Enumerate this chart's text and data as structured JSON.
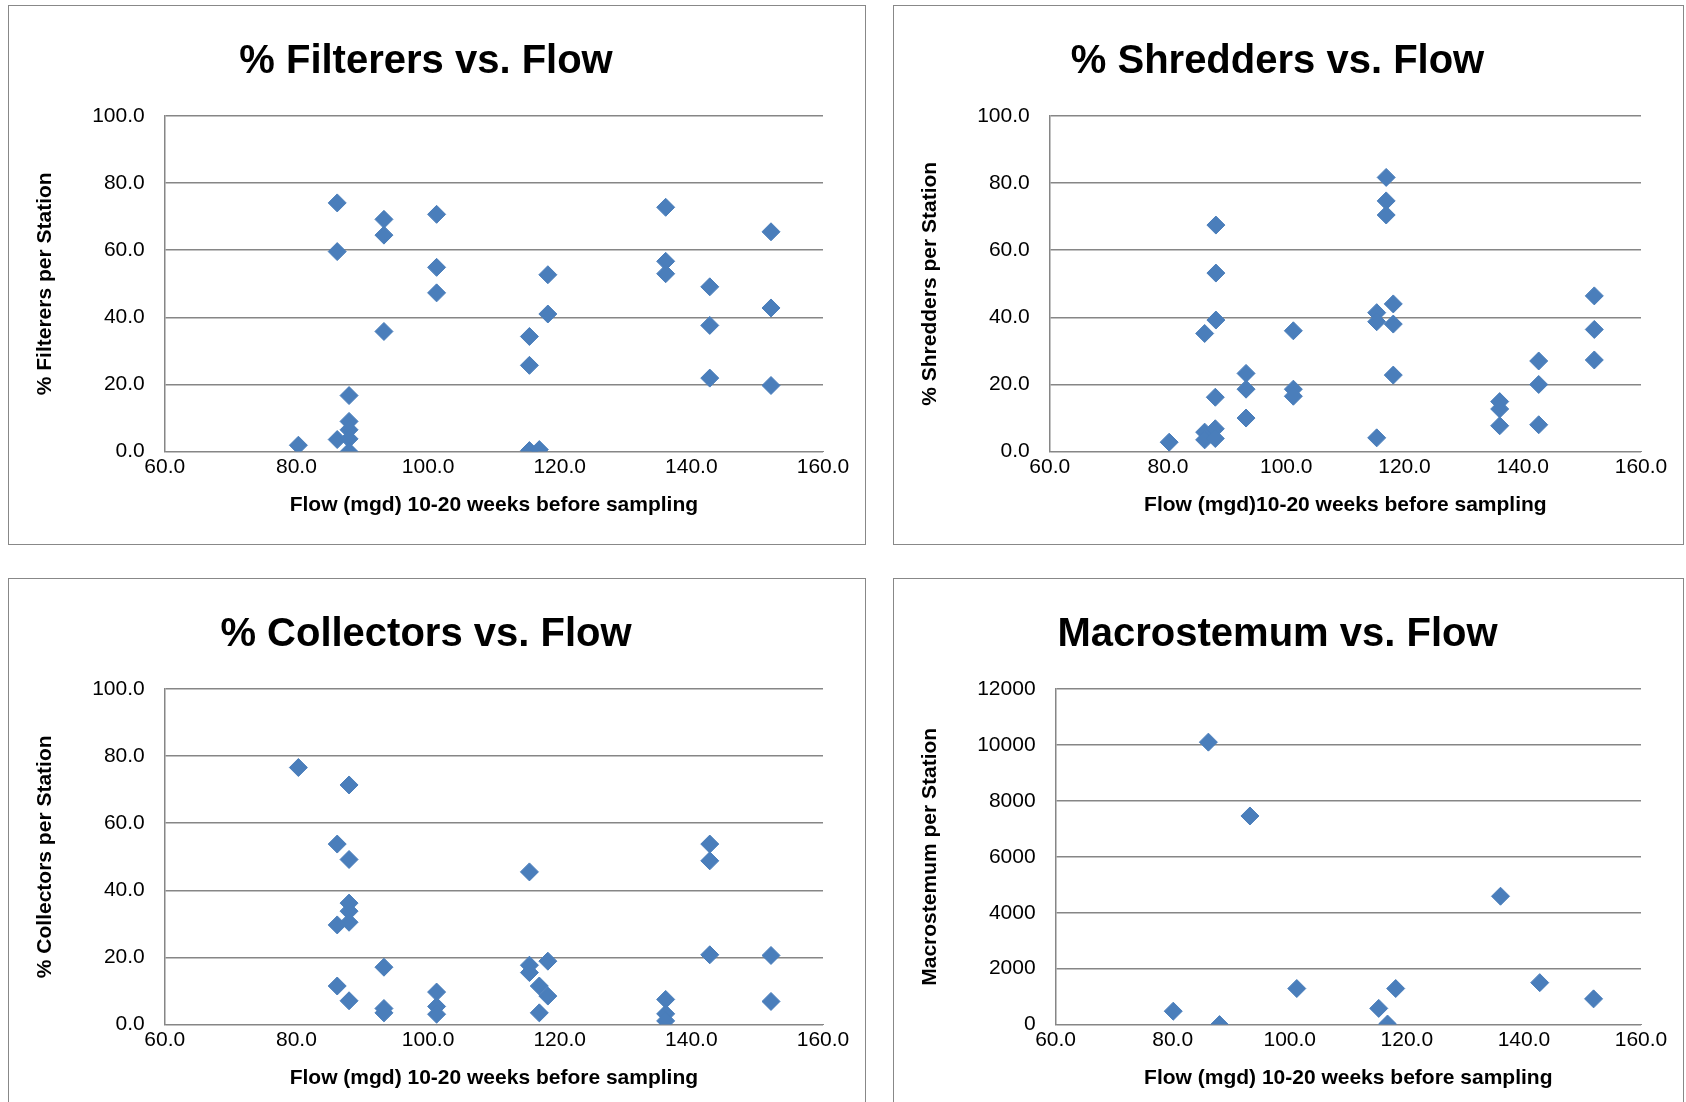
{
  "chart_data": [
    {
      "type": "scatter",
      "title": "% Filterers vs. Flow",
      "xlabel": "Flow (mgd) 10-20 weeks before sampling",
      "ylabel": "% Filterers per Station",
      "color": "#4a7ebb",
      "marker": "diamond",
      "grid": "y",
      "x": [
        80.3,
        86.2,
        86.2,
        86.2,
        88.0,
        88.0,
        88.0,
        88.0,
        88.0,
        93.3,
        93.3,
        93.3,
        101.3,
        101.3,
        101.3,
        115.4,
        115.4,
        115.4,
        116.9,
        118.2,
        118.2,
        136.1,
        136.1,
        136.1,
        142.8,
        142.8,
        142.8,
        152.1,
        152.1,
        152.1
      ],
      "values": [
        1.9,
        74.1,
        59.6,
        3.6,
        16.7,
        9.0,
        6.5,
        3.8,
        0.0,
        69.2,
        64.5,
        35.8,
        70.7,
        54.9,
        47.3,
        34.3,
        25.7,
        0.3,
        0.6,
        52.7,
        41.0,
        72.8,
        56.7,
        53.0,
        49.1,
        37.6,
        21.9,
        65.5,
        42.8,
        19.7
      ],
      "xlim": [
        60,
        160
      ],
      "xticks": [
        {
          "value": 60,
          "label": "60.0"
        },
        {
          "value": 80,
          "label": "80.0"
        },
        {
          "value": 100,
          "label": "100.0"
        },
        {
          "value": 120,
          "label": "120.0"
        },
        {
          "value": 140,
          "label": "140.0"
        },
        {
          "value": 160,
          "label": "160.0"
        }
      ],
      "ylim": [
        0,
        100
      ],
      "yticks": [
        {
          "value": 0,
          "label": "0.0"
        },
        {
          "value": 20,
          "label": "20.0"
        },
        {
          "value": 40,
          "label": "40.0"
        },
        {
          "value": 60,
          "label": "60.0"
        },
        {
          "value": 80,
          "label": "80.0"
        },
        {
          "value": 100,
          "label": "100.0"
        }
      ]
    },
    {
      "type": "scatter",
      "title": "% Shredders vs. Flow",
      "xlabel": "Flow (mgd)10-20 weeks before sampling",
      "ylabel": "% Shredders per Station",
      "color": "#4a7ebb",
      "marker": "diamond",
      "grid": "y",
      "x": [
        80.2,
        86.2,
        86.2,
        86.2,
        88.1,
        88.1,
        88.1,
        88.0,
        88.0,
        88.0,
        93.2,
        93.2,
        93.2,
        101.2,
        101.2,
        101.2,
        115.3,
        115.3,
        115.3,
        116.9,
        116.9,
        116.9,
        118.1,
        118.1,
        118.1,
        136.1,
        136.1,
        136.1,
        142.7,
        142.7,
        142.7,
        152.1,
        152.1,
        152.1
      ],
      "values": [
        2.8,
        35.2,
        5.8,
        3.5,
        67.5,
        53.2,
        39.2,
        16.2,
        6.8,
        3.9,
        23.3,
        18.6,
        10.0,
        36.0,
        18.6,
        16.5,
        41.4,
        38.7,
        4.1,
        81.7,
        74.7,
        70.5,
        44.0,
        38.0,
        22.8,
        14.9,
        12.7,
        7.7,
        27.0,
        20.0,
        8.0,
        46.4,
        36.4,
        27.3
      ],
      "xlim": [
        60,
        160
      ],
      "xticks": [
        {
          "value": 60,
          "label": "60.0"
        },
        {
          "value": 80,
          "label": "80.0"
        },
        {
          "value": 100,
          "label": "100.0"
        },
        {
          "value": 120,
          "label": "120.0"
        },
        {
          "value": 140,
          "label": "140.0"
        },
        {
          "value": 160,
          "label": "160.0"
        }
      ],
      "ylim": [
        0,
        100
      ],
      "yticks": [
        {
          "value": 0,
          "label": "0.0"
        },
        {
          "value": 20,
          "label": "20.0"
        },
        {
          "value": 40,
          "label": "40.0"
        },
        {
          "value": 60,
          "label": "60.0"
        },
        {
          "value": 80,
          "label": "80.0"
        },
        {
          "value": 100,
          "label": "100.0"
        }
      ]
    },
    {
      "type": "scatter",
      "title": "% Collectors vs. Flow",
      "xlabel": "Flow (mgd) 10-20 weeks before sampling",
      "ylabel": "% Collectors per Station",
      "color": "#4a7ebb",
      "marker": "diamond",
      "grid": "y",
      "x": [
        80.3,
        88.0,
        86.2,
        88.0,
        88.0,
        88.0,
        88.0,
        86.2,
        93.3,
        86.2,
        88.0,
        93.3,
        93.3,
        101.3,
        101.3,
        101.3,
        115.4,
        115.4,
        115.4,
        116.9,
        118.2,
        118.2,
        116.9,
        136.1,
        136.1,
        136.1,
        142.8,
        142.8,
        142.8,
        152.1,
        152.1
      ],
      "values": [
        76.6,
        71.4,
        53.8,
        49.2,
        36.2,
        33.8,
        30.5,
        29.7,
        17.1,
        11.5,
        7.1,
        4.8,
        3.5,
        9.7,
        5.4,
        3.1,
        45.5,
        17.7,
        15.5,
        11.5,
        18.9,
        8.5,
        3.5,
        7.5,
        3.2,
        1.1,
        53.8,
        48.8,
        20.8,
        20.6,
        6.9
      ],
      "xlim": [
        60,
        160
      ],
      "xticks": [
        {
          "value": 60,
          "label": "60.0"
        },
        {
          "value": 80,
          "label": "80.0"
        },
        {
          "value": 100,
          "label": "100.0"
        },
        {
          "value": 120,
          "label": "120.0"
        },
        {
          "value": 140,
          "label": "140.0"
        },
        {
          "value": 160,
          "label": "160.0"
        }
      ],
      "ylim": [
        0,
        100
      ],
      "yticks": [
        {
          "value": 0,
          "label": "0.0"
        },
        {
          "value": 20,
          "label": "20.0"
        },
        {
          "value": 40,
          "label": "40.0"
        },
        {
          "value": 60,
          "label": "60.0"
        },
        {
          "value": 80,
          "label": "80.0"
        },
        {
          "value": 100,
          "label": "100.0"
        }
      ]
    },
    {
      "type": "scatter",
      "title": "Macrostemum vs. Flow",
      "xlabel": "Flow (mgd) 10-20 weeks before sampling",
      "ylabel": "Macrostemum per Station",
      "color": "#4a7ebb",
      "marker": "diamond",
      "grid": "y",
      "x": [
        80.1,
        86.1,
        88.0,
        93.2,
        101.2,
        115.2,
        116.7,
        118.1,
        136.0,
        142.7,
        151.9
      ],
      "values": [
        480,
        10100,
        0,
        7460,
        1290,
        580,
        20,
        1290,
        4590,
        1500,
        920
      ],
      "xlim": [
        60,
        160
      ],
      "xticks": [
        {
          "value": 60,
          "label": "60.0"
        },
        {
          "value": 80,
          "label": "80.0"
        },
        {
          "value": 100,
          "label": "100.0"
        },
        {
          "value": 120,
          "label": "120.0"
        },
        {
          "value": 140,
          "label": "140.0"
        },
        {
          "value": 160,
          "label": "160.0"
        }
      ],
      "ylim": [
        0,
        12000
      ],
      "yticks": [
        0,
        2000,
        4000,
        6000,
        8000,
        10000,
        12000
      ]
    }
  ]
}
